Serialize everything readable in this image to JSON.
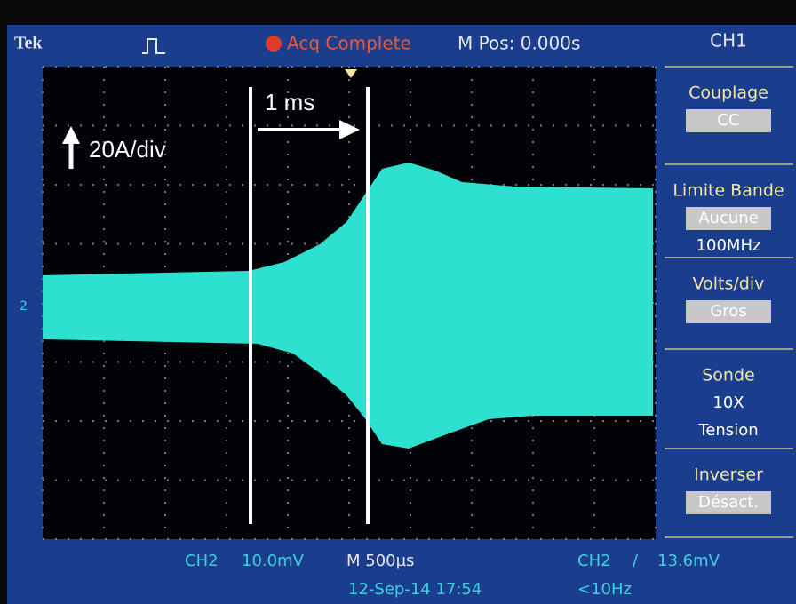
{
  "header": {
    "brand": "Tek",
    "status": "Acq Complete",
    "position": "M Pos: 0.000s"
  },
  "menu": {
    "channel": "CH1",
    "items": [
      {
        "label": "Couplage",
        "values": [
          "CC"
        ]
      },
      {
        "label": "Limite Bande",
        "values": [
          "Aucune",
          "100MHz"
        ]
      },
      {
        "label": "Volts/div",
        "values": [
          "Gros"
        ]
      },
      {
        "label": "Sonde",
        "values": [
          "10X",
          "Tension"
        ]
      },
      {
        "label": "Inverser",
        "values": [
          "Désact."
        ]
      }
    ]
  },
  "annotations": {
    "time_span": "1 ms",
    "scale": "20A/div"
  },
  "screen": {
    "channel_marker": "2"
  },
  "footer": {
    "channel": "CH2",
    "volts": "10.0mV",
    "timebase": "M 500µs",
    "trigger_channel": "CH2",
    "trigger_slope": "∕",
    "trigger_level": "13.6mV",
    "datetime": "12-Sep-14 17:54",
    "frequency": "<10Hz"
  }
}
